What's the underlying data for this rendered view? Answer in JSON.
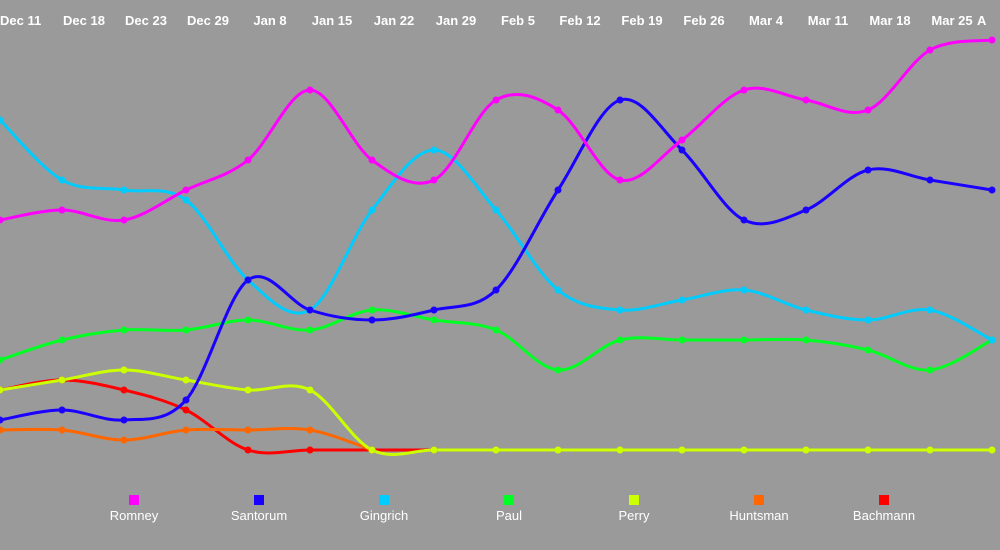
{
  "chart_data": {
    "type": "line",
    "x": [
      "Dec 11",
      "Dec 18",
      "Dec 23",
      "Dec 29",
      "Jan 8",
      "Jan 15",
      "Jan 22",
      "Jan 29",
      "Feb 5",
      "Feb 12",
      "Feb 19",
      "Feb 26",
      "Mar 4",
      "Mar 11",
      "Mar 18",
      "Mar 25",
      "A"
    ],
    "ylim": [
      0,
      42
    ],
    "grid": false,
    "legend": "bottom",
    "series": [
      {
        "name": "Romney",
        "color": "#ff00ff",
        "values": [
          23,
          24,
          23,
          26,
          29,
          36,
          29,
          27,
          35,
          34,
          27,
          31,
          36,
          35,
          34,
          40,
          41
        ]
      },
      {
        "name": "Santorum",
        "color": "#1a00ff",
        "values": [
          3,
          4,
          3,
          5,
          17,
          14,
          13,
          14,
          16,
          26,
          35,
          30,
          23,
          24,
          28,
          27,
          26
        ]
      },
      {
        "name": "Gingrich",
        "color": "#00ccff",
        "values": [
          33,
          27,
          26,
          25,
          17,
          14,
          24,
          30,
          24,
          16,
          14,
          15,
          16,
          14,
          13,
          14,
          11
        ]
      },
      {
        "name": "Paul",
        "color": "#00ff22",
        "values": [
          9,
          11,
          12,
          12,
          13,
          12,
          14,
          13,
          12,
          8,
          11,
          11,
          11,
          11,
          10,
          8,
          11
        ]
      },
      {
        "name": "Perry",
        "color": "#ccff00",
        "values": [
          6,
          7,
          8,
          7,
          6,
          6,
          0,
          0,
          0,
          0,
          0,
          0,
          0,
          0,
          0,
          0,
          0
        ]
      },
      {
        "name": "Huntsman",
        "color": "#ff6600",
        "values": [
          2,
          2,
          1,
          2,
          2,
          2,
          0,
          null,
          null,
          null,
          null,
          null,
          null,
          null,
          null,
          null,
          null
        ]
      },
      {
        "name": "Bachmann",
        "color": "#ff0000",
        "values": [
          6,
          7,
          6,
          4,
          0,
          0,
          0,
          0,
          null,
          null,
          null,
          null,
          null,
          null,
          null,
          null,
          null
        ]
      }
    ]
  }
}
